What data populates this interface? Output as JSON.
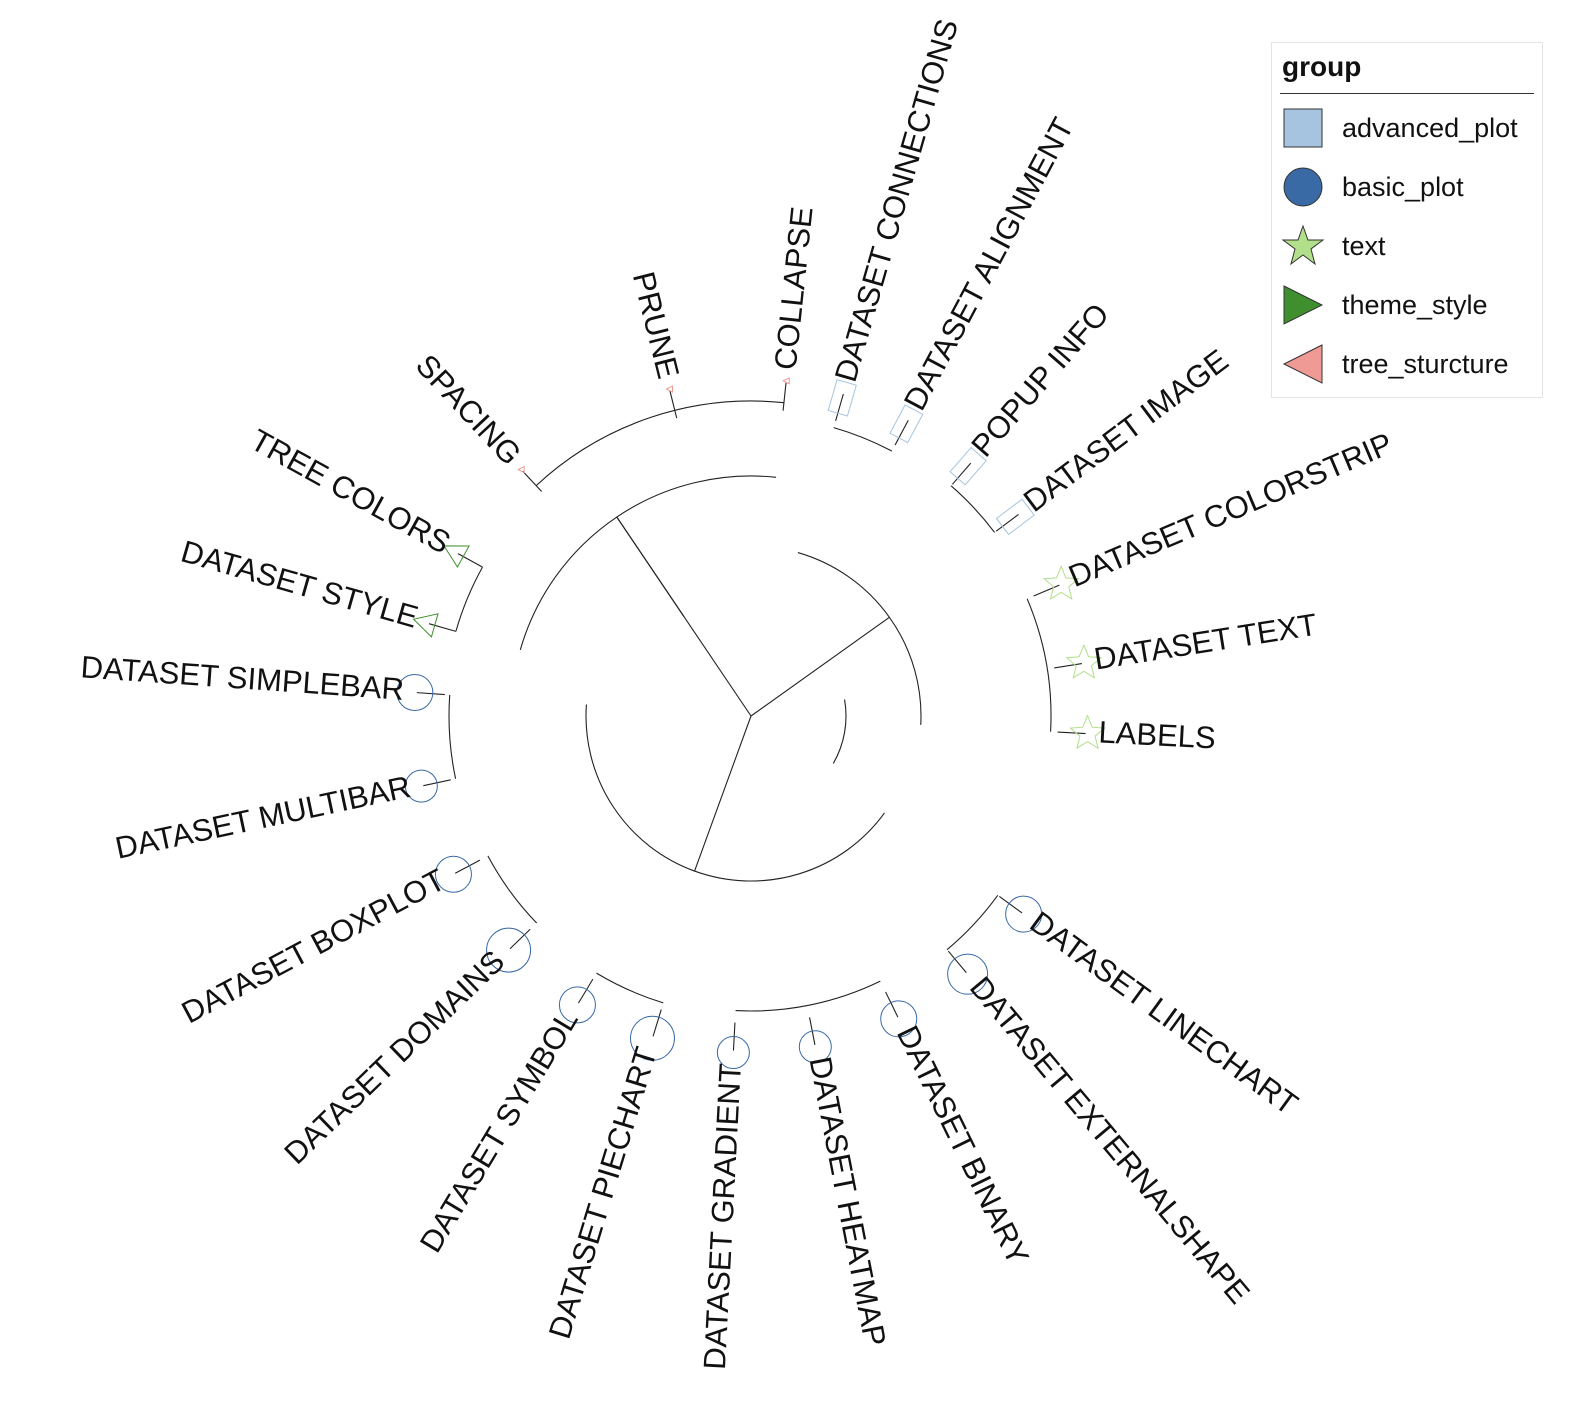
{
  "legend": {
    "title": "group",
    "items": [
      {
        "label": "advanced_plot",
        "shape": "square-icon",
        "color": "#a6c4df"
      },
      {
        "label": "basic_plot",
        "shape": "circle-icon",
        "color": "#3a6aa6"
      },
      {
        "label": "text",
        "shape": "star-icon",
        "color": "#b2df8a"
      },
      {
        "label": "theme_style",
        "shape": "triangle-right-icon",
        "color": "#3f8f2f"
      },
      {
        "label": "tree_sturcture",
        "shape": "triangle-left-icon",
        "color": "#ef9a94"
      }
    ]
  },
  "tree": {
    "leaves": [
      {
        "label": "COLLAPSE",
        "group": "tree_sturcture"
      },
      {
        "label": "DATASET CONNECTIONS",
        "group": "advanced_plot"
      },
      {
        "label": "DATASET ALIGNMENT",
        "group": "advanced_plot"
      },
      {
        "label": "POPUP INFO",
        "group": "advanced_plot"
      },
      {
        "label": "DATASET IMAGE",
        "group": "advanced_plot"
      },
      {
        "label": "DATASET COLORSTRIP",
        "group": "text"
      },
      {
        "label": "DATASET TEXT",
        "group": "text"
      },
      {
        "label": "LABELS",
        "group": "text"
      },
      {
        "label": "DATASET LINECHART",
        "group": "basic_plot"
      },
      {
        "label": "DATASET EXTERNALSHAPE",
        "group": "basic_plot"
      },
      {
        "label": "DATASET BINARY",
        "group": "basic_plot"
      },
      {
        "label": "DATASET HEATMAP",
        "group": "basic_plot"
      },
      {
        "label": "DATASET GRADIENT",
        "group": "basic_plot"
      },
      {
        "label": "DATASET PIECHART",
        "group": "basic_plot"
      },
      {
        "label": "DATASET SYMBOL",
        "group": "basic_plot"
      },
      {
        "label": "DATASET DOMAINS",
        "group": "basic_plot"
      },
      {
        "label": "DATASET BOXPLOT",
        "group": "basic_plot"
      },
      {
        "label": "DATASET MULTIBAR",
        "group": "basic_plot"
      },
      {
        "label": "DATASET SIMPLEBAR",
        "group": "basic_plot"
      },
      {
        "label": "DATASET STYLE",
        "group": "theme_style"
      },
      {
        "label": "TREE COLORS",
        "group": "theme_style"
      },
      {
        "label": "SPACING",
        "group": "tree_sturcture"
      },
      {
        "label": "PRUNE",
        "group": "tree_sturcture"
      }
    ]
  }
}
